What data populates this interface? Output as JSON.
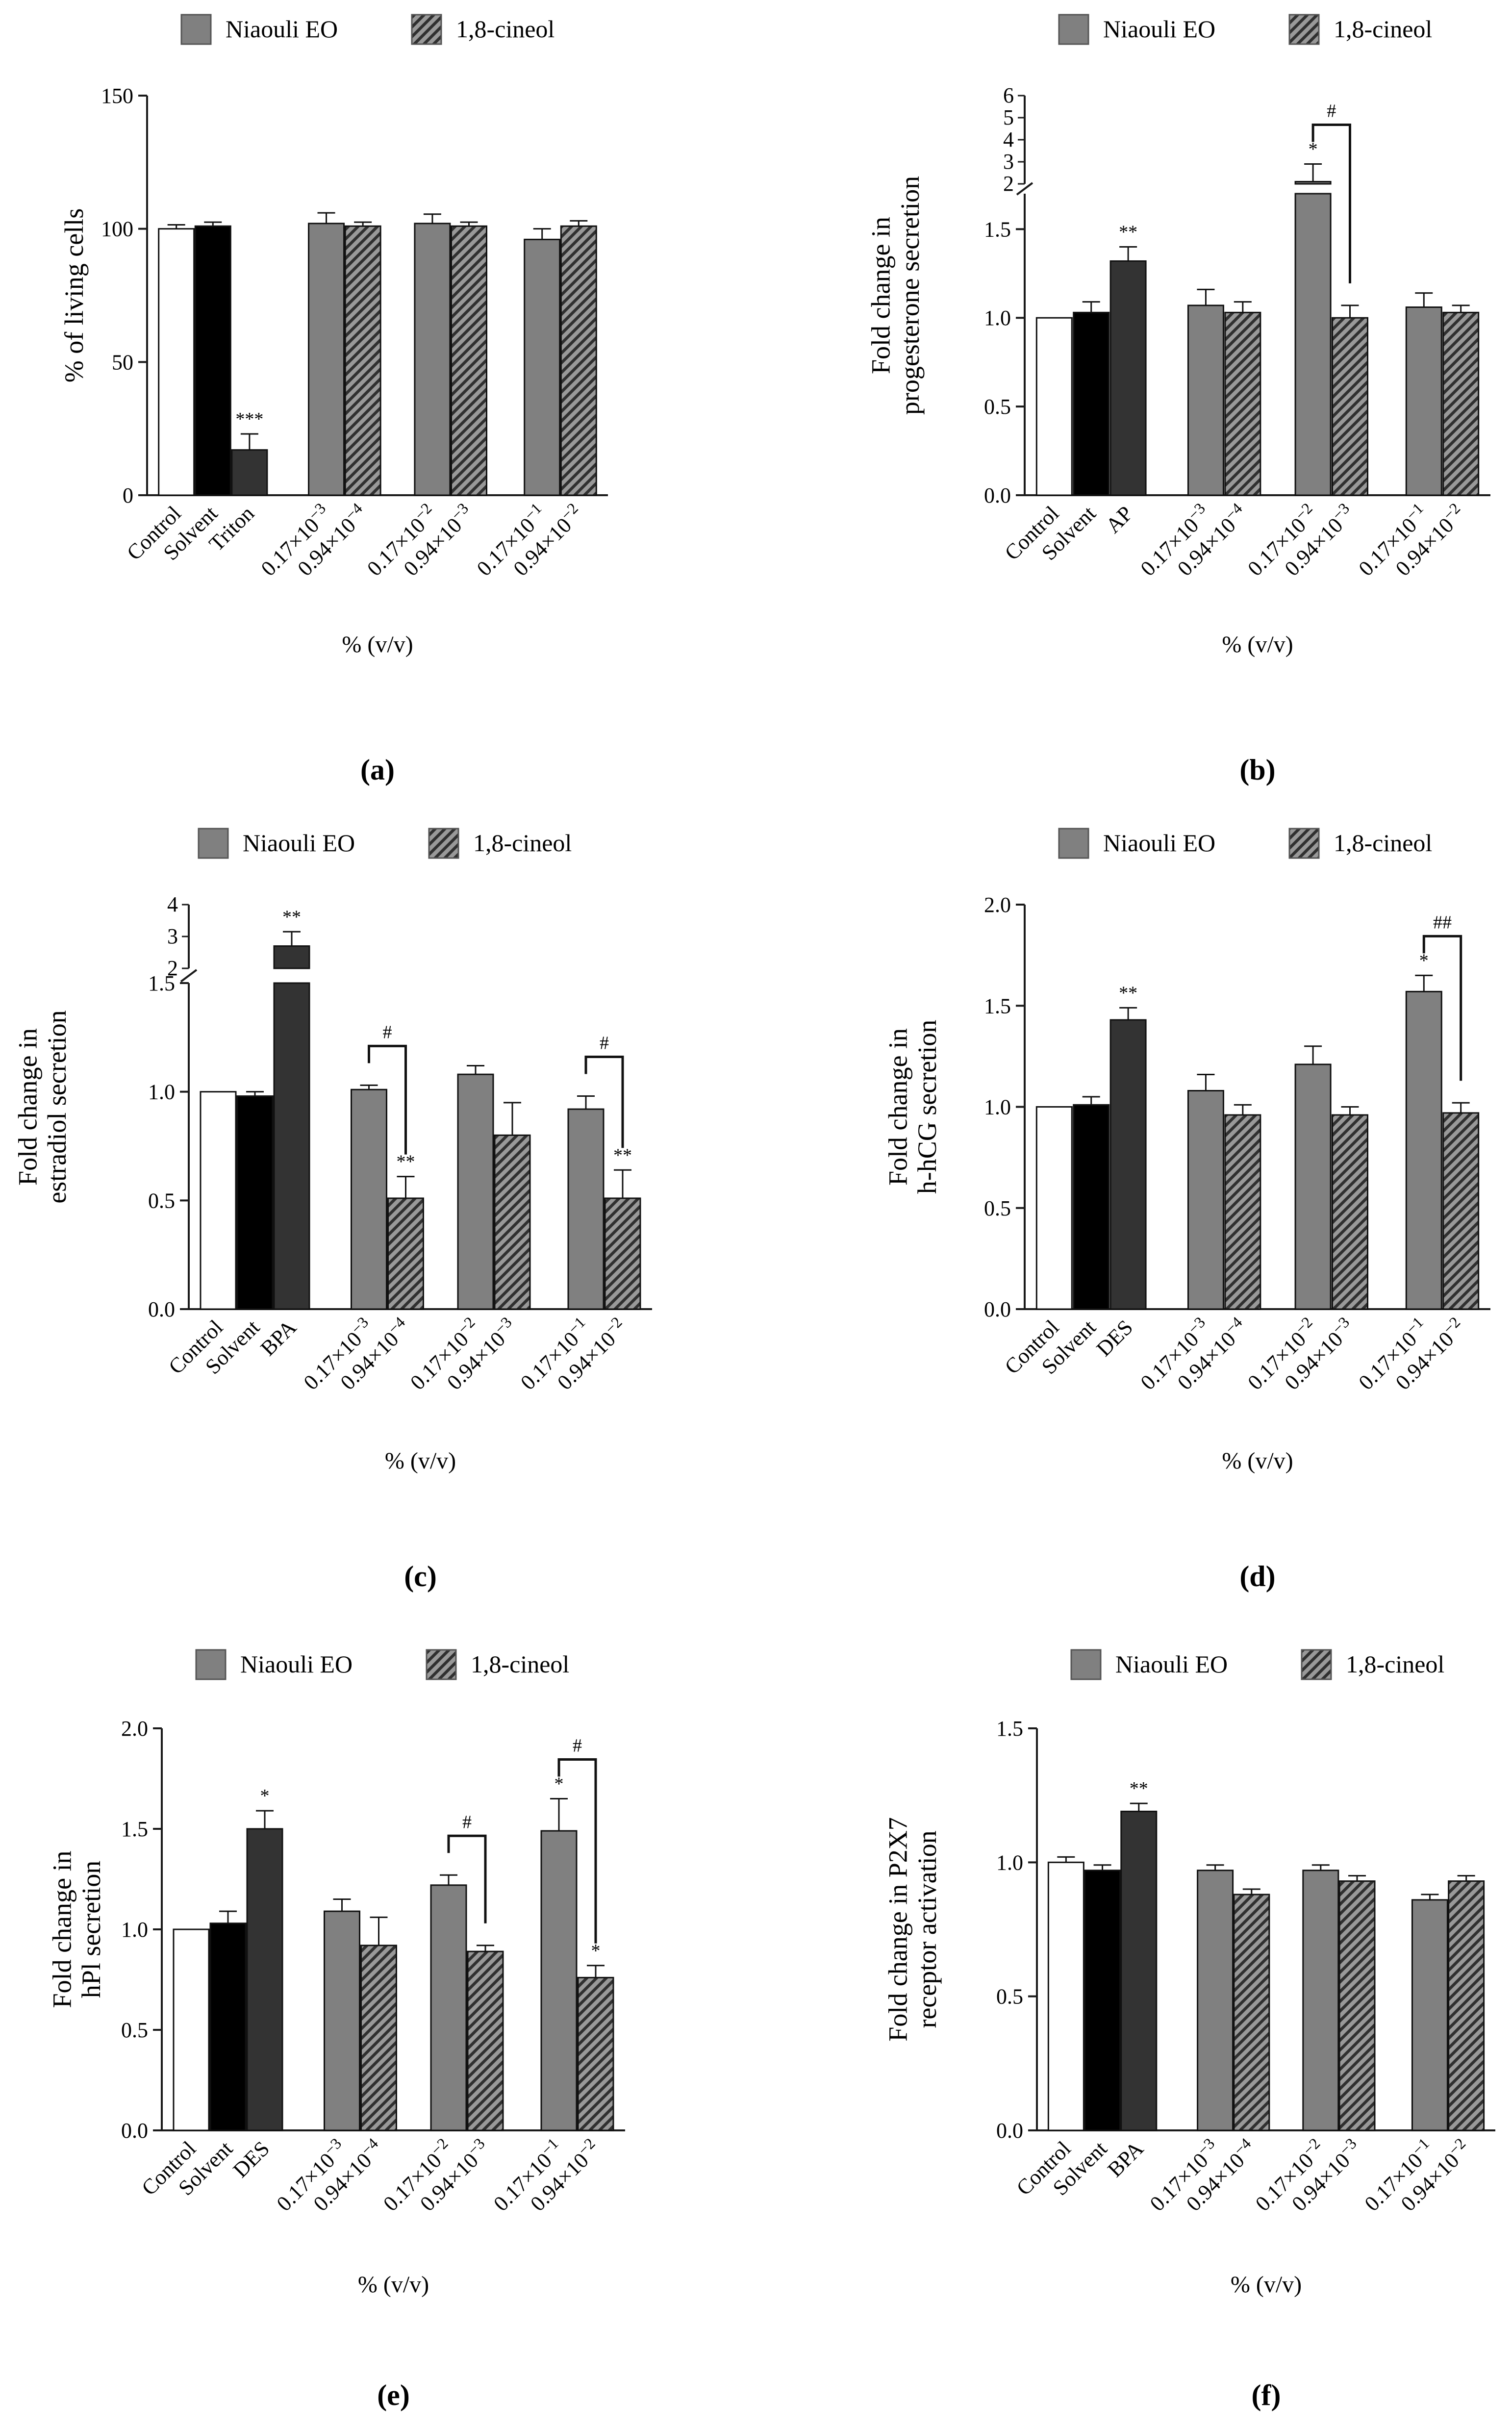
{
  "colors": {
    "control": "#ffffff",
    "solvent": "#000000",
    "positive": "#333333",
    "niaouli": "#808080",
    "cineol_bg": "#999999",
    "cineol_hatch": "#303030",
    "axis": "#1a1a1a"
  },
  "legend": {
    "niaouli": "Niaouli EO",
    "cineol": "1,8-cineol"
  },
  "chart_data": [
    {
      "panel": "(a)",
      "type": "bar",
      "ylabel": [
        "% of living cells"
      ],
      "xlabel": "% (v/v)",
      "ylim": [
        0,
        150
      ],
      "yticks": [
        0,
        50,
        100,
        150
      ],
      "break": null,
      "categories": [
        "Control",
        "Solvent",
        "Triton",
        "0.17×10^-3",
        "0.94×10^-4",
        "0.17×10^-2",
        "0.94×10^-3",
        "0.17×10^-1",
        "0.94×10^-2"
      ],
      "values": [
        100,
        101,
        17,
        102,
        101,
        102,
        101,
        96,
        101
      ],
      "errors": [
        1.5,
        1.5,
        6,
        4,
        1.5,
        3.5,
        1.5,
        4,
        2
      ],
      "sig": [
        "",
        "",
        "***",
        "",
        "",
        "",
        "",
        "",
        ""
      ],
      "brackets": []
    },
    {
      "panel": "(b)",
      "type": "bar",
      "ylabel": [
        "Fold change in",
        "progesterone secretion"
      ],
      "xlabel": "% (v/v)",
      "ylim": [
        0,
        1.7
      ],
      "yticks": [
        0,
        0.5,
        1.0,
        1.5
      ],
      "break": {
        "upper_ticks": [
          2,
          3,
          4,
          5,
          6
        ],
        "upper_range": [
          2,
          6
        ]
      },
      "categories": [
        "Control",
        "Solvent",
        "AP",
        "0.17×10^-3",
        "0.94×10^-4",
        "0.17×10^-2",
        "0.94×10^-3",
        "0.17×10^-1",
        "0.94×10^-2"
      ],
      "values": [
        1.0,
        1.03,
        1.32,
        1.07,
        1.03,
        2.1,
        1.0,
        1.06,
        1.03
      ],
      "errors": [
        0.0,
        0.06,
        0.08,
        0.09,
        0.06,
        0.8,
        0.07,
        0.08,
        0.04
      ],
      "sig": [
        "",
        "",
        "**",
        "",
        "",
        "*",
        "",
        "",
        ""
      ],
      "brackets": [
        {
          "from": 5,
          "to": 6,
          "label": "#"
        }
      ]
    },
    {
      "panel": "(c)",
      "type": "bar",
      "ylabel": [
        "Fold change in",
        "estradiol secretion"
      ],
      "xlabel": "% (v/v)",
      "ylim": [
        0,
        1.5
      ],
      "yticks": [
        0,
        0.5,
        1.0,
        1.5
      ],
      "break": {
        "upper_ticks": [
          2,
          3,
          4
        ],
        "upper_range": [
          2,
          4
        ]
      },
      "categories": [
        "Control",
        "Solvent",
        "BPA",
        "0.17×10^-3",
        "0.94×10^-4",
        "0.17×10^-2",
        "0.94×10^-3",
        "0.17×10^-1",
        "0.94×10^-2"
      ],
      "values": [
        1.0,
        0.98,
        2.7,
        1.01,
        0.51,
        1.08,
        0.8,
        0.92,
        0.51
      ],
      "errors": [
        0.0,
        0.02,
        0.45,
        0.02,
        0.1,
        0.04,
        0.15,
        0.06,
        0.13
      ],
      "sig": [
        "",
        "",
        "**",
        "",
        "**",
        "",
        "",
        "",
        "**"
      ],
      "brackets": [
        {
          "from": 3,
          "to": 4,
          "label": "#"
        },
        {
          "from": 7,
          "to": 8,
          "label": "#"
        }
      ]
    },
    {
      "panel": "(d)",
      "type": "bar",
      "ylabel": [
        "Fold change in",
        "h-hCG secretion"
      ],
      "xlabel": "% (v/v)",
      "ylim": [
        0,
        2.0
      ],
      "yticks": [
        0,
        0.5,
        1.0,
        1.5,
        2.0
      ],
      "break": null,
      "categories": [
        "Control",
        "Solvent",
        "DES",
        "0.17×10^-3",
        "0.94×10^-4",
        "0.17×10^-2",
        "0.94×10^-3",
        "0.17×10^-1",
        "0.94×10^-2"
      ],
      "values": [
        1.0,
        1.01,
        1.43,
        1.08,
        0.96,
        1.21,
        0.96,
        1.57,
        0.97
      ],
      "errors": [
        0.0,
        0.04,
        0.06,
        0.08,
        0.05,
        0.09,
        0.04,
        0.08,
        0.05
      ],
      "sig": [
        "",
        "",
        "**",
        "",
        "",
        "",
        "",
        "*",
        ""
      ],
      "brackets": [
        {
          "from": 7,
          "to": 8,
          "label": "##"
        }
      ]
    },
    {
      "panel": "(e)",
      "type": "bar",
      "ylabel": [
        "Fold change in",
        "hPl secretion"
      ],
      "xlabel": "% (v/v)",
      "ylim": [
        0,
        2.0
      ],
      "yticks": [
        0,
        0.5,
        1.0,
        1.5,
        2.0
      ],
      "break": null,
      "categories": [
        "Control",
        "Solvent",
        "DES",
        "0.17×10^-3",
        "0.94×10^-4",
        "0.17×10^-2",
        "0.94×10^-3",
        "0.17×10^-1",
        "0.94×10^-2"
      ],
      "values": [
        1.0,
        1.03,
        1.5,
        1.09,
        0.92,
        1.22,
        0.89,
        1.49,
        0.76
      ],
      "errors": [
        0.0,
        0.06,
        0.09,
        0.06,
        0.14,
        0.05,
        0.03,
        0.16,
        0.06
      ],
      "sig": [
        "",
        "",
        "*",
        "",
        "",
        "",
        "",
        "*",
        "*"
      ],
      "brackets": [
        {
          "from": 5,
          "to": 6,
          "label": "#"
        },
        {
          "from": 7,
          "to": 8,
          "label": "#"
        }
      ]
    },
    {
      "panel": "(f)",
      "type": "bar",
      "ylabel": [
        "Fold change in P2X7",
        "receptor activation"
      ],
      "xlabel": "% (v/v)",
      "ylim": [
        0,
        1.5
      ],
      "yticks": [
        0,
        0.5,
        1.0,
        1.5
      ],
      "break": null,
      "categories": [
        "Control",
        "Solvent",
        "BPA",
        "0.17×10^-3",
        "0.94×10^-4",
        "0.17×10^-2",
        "0.94×10^-3",
        "0.17×10^-1",
        "0.94×10^-2"
      ],
      "values": [
        1.0,
        0.97,
        1.19,
        0.97,
        0.88,
        0.97,
        0.93,
        0.86,
        0.93
      ],
      "errors": [
        0.02,
        0.02,
        0.03,
        0.02,
        0.02,
        0.02,
        0.02,
        0.02,
        0.02
      ],
      "sig": [
        "",
        "",
        "**",
        "",
        "",
        "",
        "",
        "",
        ""
      ],
      "brackets": []
    }
  ]
}
